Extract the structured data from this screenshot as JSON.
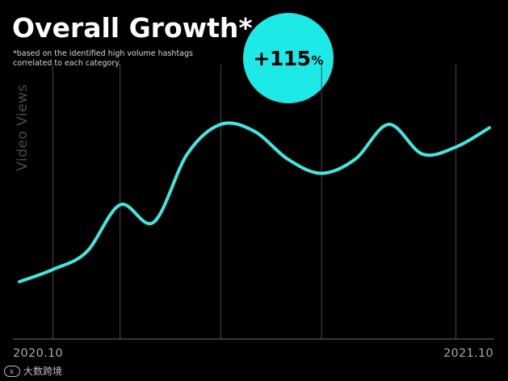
{
  "header": {
    "title": "Overall Growth*",
    "subtitle": "*based on the identified high volume hashtags correlated to each category."
  },
  "badge": {
    "value": "+115",
    "unit": "%",
    "color": "#1de9e6"
  },
  "watermark": {
    "text": "大数跨境"
  },
  "chart_data": {
    "type": "line",
    "ylabel": "Video Views",
    "x_tick_labels": [
      "2020.10",
      "2021.10"
    ],
    "x_range": [
      "2020.10",
      "2021.10"
    ],
    "grid": "vertical",
    "line_color": "#40e8e0",
    "series": [
      {
        "values": [
          {
            "x": "2020-09",
            "y": 10
          },
          {
            "x": "2020-10",
            "y": 17
          },
          {
            "x": "2020-11",
            "y": 27
          },
          {
            "x": "2020-12",
            "y": 54
          },
          {
            "x": "2021-01",
            "y": 44
          },
          {
            "x": "2021-02",
            "y": 83
          },
          {
            "x": "2021-03",
            "y": 100
          },
          {
            "x": "2021-04",
            "y": 96
          },
          {
            "x": "2021-05",
            "y": 80
          },
          {
            "x": "2021-06",
            "y": 72
          },
          {
            "x": "2021-07",
            "y": 80
          },
          {
            "x": "2021-08",
            "y": 100
          },
          {
            "x": "2021-09",
            "y": 83
          },
          {
            "x": "2021-10",
            "y": 87
          },
          {
            "x": "2021-11",
            "y": 98
          }
        ]
      }
    ]
  }
}
